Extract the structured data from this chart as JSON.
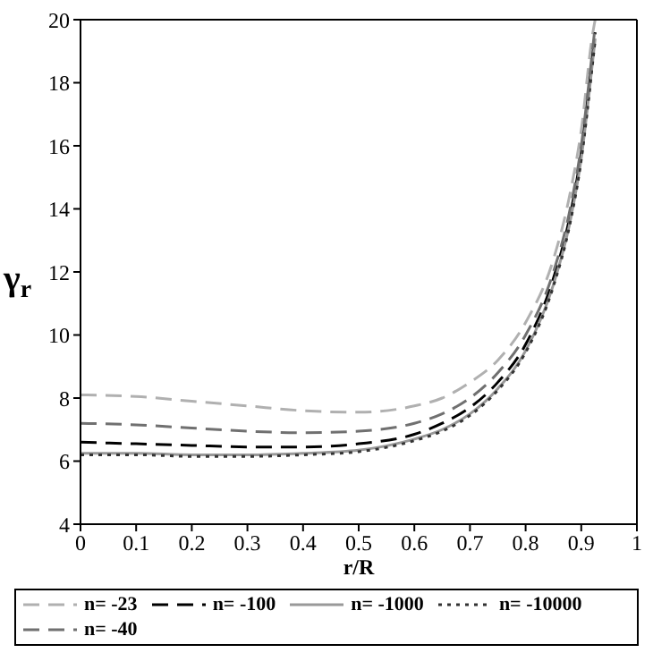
{
  "chart_data": {
    "type": "line",
    "xlabel": "r/R",
    "ylabel": "γ$_{r}$",
    "xlim": [
      0,
      1
    ],
    "xticks": [
      0,
      0.1,
      0.2,
      0.3,
      0.4,
      0.5,
      0.6,
      0.7,
      0.8,
      0.9,
      1
    ],
    "ylim": [
      4,
      20
    ],
    "yticks": [
      4,
      6,
      8,
      10,
      12,
      14,
      16,
      18,
      20
    ],
    "legend": "bottom",
    "marker": "none",
    "x": [
      0,
      0.1,
      0.2,
      0.3,
      0.4,
      0.5,
      0.6,
      0.65,
      0.7,
      0.75,
      0.8,
      0.85,
      0.88,
      0.9,
      0.92,
      0.925
    ],
    "series": [
      {
        "name": "n= -23",
        "color": "#b0b0b0",
        "line_style": "dashed",
        "values": [
          8.1,
          8.05,
          7.9,
          7.75,
          7.6,
          7.55,
          7.75,
          8.0,
          8.5,
          9.2,
          10.4,
          12.4,
          14.5,
          16.5,
          19.5,
          20
        ]
      },
      {
        "name": "n= -100",
        "color": "#000000",
        "line_style": "dashed",
        "values": [
          6.6,
          6.55,
          6.5,
          6.45,
          6.45,
          6.55,
          6.85,
          7.2,
          7.7,
          8.5,
          9.7,
          11.8,
          13.8,
          15.8,
          18.8,
          19.6
        ]
      },
      {
        "name": "n= -1000",
        "color": "#999999",
        "line_style": "solid",
        "values": [
          6.25,
          6.25,
          6.2,
          6.2,
          6.25,
          6.35,
          6.7,
          7.0,
          7.5,
          8.3,
          9.5,
          11.6,
          13.6,
          15.6,
          18.6,
          19.4
        ]
      },
      {
        "name": "n= -10000",
        "color": "#333333",
        "line_style": "dotted",
        "values": [
          6.2,
          6.2,
          6.15,
          6.15,
          6.2,
          6.3,
          6.65,
          6.95,
          7.45,
          8.25,
          9.45,
          11.55,
          13.55,
          15.55,
          18.55,
          19.35
        ]
      },
      {
        "name": "n= -40",
        "color": "#707070",
        "line_style": "dashed",
        "values": [
          7.2,
          7.15,
          7.05,
          6.95,
          6.9,
          6.95,
          7.2,
          7.5,
          8.0,
          8.8,
          10.0,
          12.0,
          14.0,
          16.0,
          19.0,
          19.8
        ]
      }
    ]
  }
}
